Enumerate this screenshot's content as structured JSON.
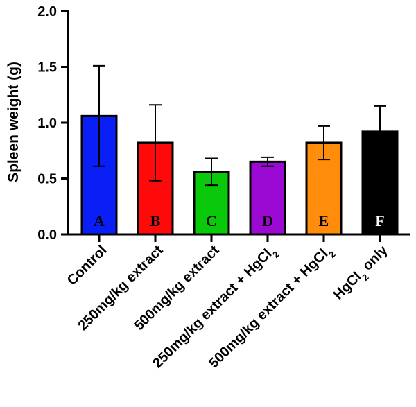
{
  "chart_data": {
    "type": "bar",
    "title": "",
    "xlabel": "",
    "ylabel": "Spleen weight (g)",
    "ylim": [
      0,
      2.0
    ],
    "yticks": [
      "0.0",
      "0.5",
      "1.0",
      "1.5",
      "2.0"
    ],
    "grid": false,
    "categories": [
      {
        "parts": [
          {
            "t": "Control"
          }
        ]
      },
      {
        "parts": [
          {
            "t": "250mg/kg extract"
          }
        ]
      },
      {
        "parts": [
          {
            "t": "500mg/kg extract"
          }
        ]
      },
      {
        "parts": [
          {
            "t": "250mg/kg extract + HgCl"
          },
          {
            "t": "2",
            "sub": true
          }
        ]
      },
      {
        "parts": [
          {
            "t": "500mg/kg extract + HgCl"
          },
          {
            "t": "2",
            "sub": true
          }
        ]
      },
      {
        "parts": [
          {
            "t": "HgCl"
          },
          {
            "t": "2",
            "sub": true
          },
          {
            "t": " only"
          }
        ]
      }
    ],
    "values": [
      1.06,
      0.82,
      0.56,
      0.65,
      0.82,
      0.92
    ],
    "error": [
      0.45,
      0.34,
      0.12,
      0.04,
      0.15,
      0.23
    ],
    "bar_letters": [
      "A",
      "B",
      "C",
      "D",
      "E",
      "F"
    ],
    "colors": [
      "#0a1ff5",
      "#ff0a0a",
      "#0ac80a",
      "#9a0ad2",
      "#ff8c0a",
      "#000000"
    ],
    "letter_colors": [
      "#000000",
      "#000000",
      "#000000",
      "#000000",
      "#000000",
      "#ffffff"
    ]
  }
}
